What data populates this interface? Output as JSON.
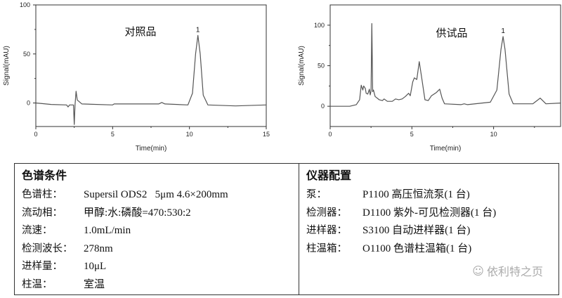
{
  "chart_data": [
    {
      "type": "line",
      "title": "对照品",
      "xlabel": "Time(min)",
      "ylabel": "Signal(mAU)",
      "xlim": [
        0,
        15
      ],
      "ylim": [
        -24,
        100
      ],
      "xticks": [
        0,
        5,
        10,
        15
      ],
      "yticks": [
        0,
        50,
        100
      ],
      "grid": false,
      "annotations": [
        {
          "text": "1",
          "x": 10.55,
          "y": 69
        }
      ],
      "series": [
        {
          "color": "#555555",
          "points": [
            [
              0,
              0
            ],
            [
              1,
              -1.5
            ],
            [
              2,
              -2
            ],
            [
              2.1,
              -4
            ],
            [
              2.2,
              -2
            ],
            [
              2.45,
              -2
            ],
            [
              2.5,
              -22
            ],
            [
              2.55,
              -2
            ],
            [
              2.62,
              12
            ],
            [
              2.7,
              3
            ],
            [
              3,
              -1
            ],
            [
              5,
              -2
            ],
            [
              5.1,
              -1
            ],
            [
              8,
              -1
            ],
            [
              8.2,
              0.5
            ],
            [
              8.4,
              -1
            ],
            [
              9.9,
              -2
            ],
            [
              10.2,
              10
            ],
            [
              10.4,
              50
            ],
            [
              10.55,
              69
            ],
            [
              10.7,
              50
            ],
            [
              10.9,
              8
            ],
            [
              11.2,
              -2
            ],
            [
              13,
              -3
            ],
            [
              15,
              -2
            ]
          ]
        }
      ]
    },
    {
      "type": "line",
      "title": "供试品",
      "xlabel": "Time(min)",
      "ylabel": "Signal(mAU)",
      "xlim": [
        0,
        14.1
      ],
      "ylim": [
        -25,
        125
      ],
      "xticks": [
        0,
        5,
        10
      ],
      "yticks": [
        0,
        50,
        100
      ],
      "grid": false,
      "annotations": [
        {
          "text": "1",
          "x": 10.58,
          "y": 86
        }
      ],
      "series": [
        {
          "color": "#555555",
          "points": [
            [
              0,
              0
            ],
            [
              1.2,
              0
            ],
            [
              1.6,
              2
            ],
            [
              1.8,
              8
            ],
            [
              1.9,
              26
            ],
            [
              2.0,
              20
            ],
            [
              2.05,
              25
            ],
            [
              2.15,
              22
            ],
            [
              2.2,
              16
            ],
            [
              2.3,
              15
            ],
            [
              2.4,
              21
            ],
            [
              2.45,
              14
            ],
            [
              2.5,
              19
            ],
            [
              2.55,
              102
            ],
            [
              2.6,
              18
            ],
            [
              2.65,
              20
            ],
            [
              2.75,
              12
            ],
            [
              3,
              8
            ],
            [
              3.2,
              7
            ],
            [
              3.3,
              9
            ],
            [
              3.5,
              6
            ],
            [
              3.8,
              6
            ],
            [
              4,
              9
            ],
            [
              4.2,
              8
            ],
            [
              4.4,
              9
            ],
            [
              4.6,
              12
            ],
            [
              4.8,
              16
            ],
            [
              4.9,
              13
            ],
            [
              5.05,
              30
            ],
            [
              5.15,
              35
            ],
            [
              5.3,
              33
            ],
            [
              5.45,
              55
            ],
            [
              5.6,
              35
            ],
            [
              5.8,
              8
            ],
            [
              6.0,
              7
            ],
            [
              6.2,
              13
            ],
            [
              6.5,
              17
            ],
            [
              6.7,
              21
            ],
            [
              6.85,
              10
            ],
            [
              7,
              3
            ],
            [
              8,
              2
            ],
            [
              8.2,
              3
            ],
            [
              8.4,
              2
            ],
            [
              9.8,
              5
            ],
            [
              10.2,
              20
            ],
            [
              10.45,
              70
            ],
            [
              10.58,
              86
            ],
            [
              10.7,
              70
            ],
            [
              10.95,
              15
            ],
            [
              11.2,
              3
            ],
            [
              12.4,
              3
            ],
            [
              12.85,
              10
            ],
            [
              13.2,
              3
            ],
            [
              14.1,
              4
            ]
          ]
        }
      ]
    }
  ],
  "table": {
    "left": {
      "header": "色谱条件",
      "rows": [
        {
          "label": "色谱柱：",
          "value": "Supersil ODS2   5μm 4.6×200mm"
        },
        {
          "label": "流动相：",
          "value": "甲醇:水:磷酸=470:530:2"
        },
        {
          "label": "流速：",
          "value": "1.0mL/min"
        },
        {
          "label": "检测波长：",
          "value": "278nm"
        },
        {
          "label": "进样量：",
          "value": "10μL"
        },
        {
          "label": "柱温：",
          "value": "室温"
        }
      ]
    },
    "right": {
      "header": "仪器配置",
      "rows": [
        {
          "label": "泵：",
          "value": "P1100 高压恒流泵(1 台)"
        },
        {
          "label": "检测器：",
          "value": "D1100 紫外-可见检测器(1 台)"
        },
        {
          "label": "进样器：",
          "value": "S3100 自动进样器(1 台)"
        },
        {
          "label": "柱温箱：",
          "value": "O1100 色谱柱温箱(1 台)"
        }
      ]
    }
  },
  "watermark": {
    "text": "依利特之页",
    "icon": "wechat-icon"
  }
}
